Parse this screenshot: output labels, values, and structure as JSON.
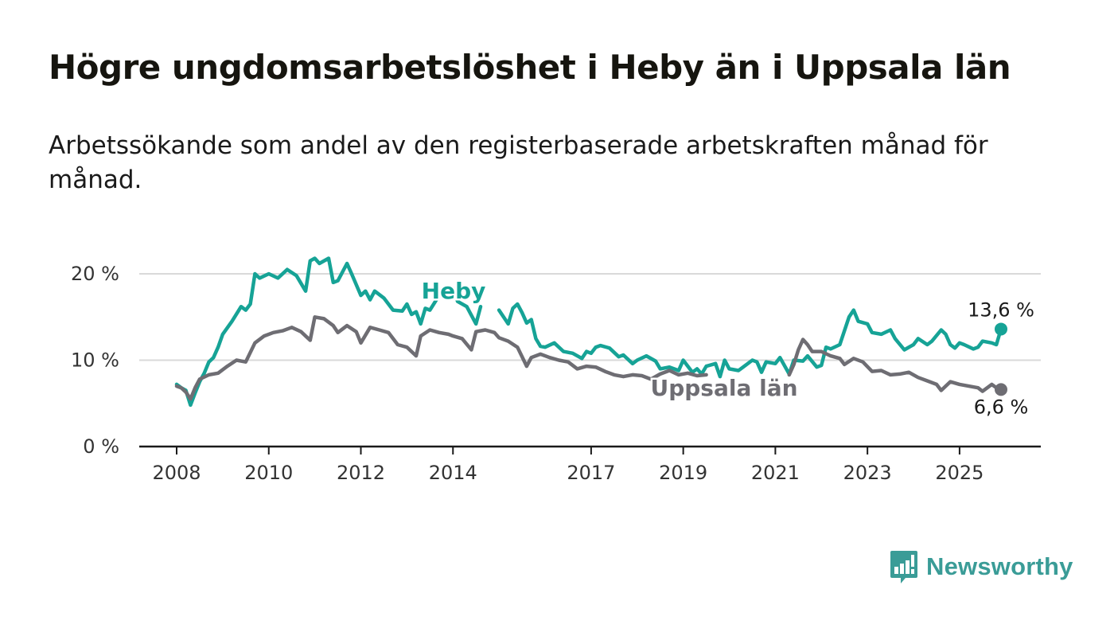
{
  "header": {
    "title": "Högre ungdomsarbetslöshet i Heby än i Uppsala län",
    "subtitle": "Arbetssökande som andel av den registerbaserade arbetskraften månad för månad."
  },
  "brand": {
    "name": "Newsworthy",
    "icon": "bar-chart-speech-bubble-icon",
    "color": "#3a9c97"
  },
  "chart_data": {
    "type": "line",
    "title": "Högre ungdomsarbetslöshet i Heby än i Uppsala län",
    "subtitle": "Arbetssökande som andel av den registerbaserade arbetskraften månad för månad.",
    "xlabel": "",
    "ylabel": "",
    "x_range": [
      2007.5,
      2025.9
    ],
    "ylim": [
      0,
      22
    ],
    "y_ticks": [
      0,
      10,
      20
    ],
    "y_tick_labels": [
      "0 %",
      "10 %",
      "20 %"
    ],
    "x_ticks": [
      2008,
      2010,
      2012,
      2014,
      2017,
      2019,
      2021,
      2023,
      2025
    ],
    "x_tick_labels": [
      "2008",
      "2010",
      "2012",
      "2014",
      "2017",
      "2019",
      "2021",
      "2023",
      "2025"
    ],
    "grid": "horizontal",
    "series": [
      {
        "name": "Heby",
        "color": "#16a396",
        "end_label": "13,6 %",
        "points": [
          [
            2008.0,
            7.2
          ],
          [
            2008.1,
            6.8
          ],
          [
            2008.2,
            6.5
          ],
          [
            2008.3,
            4.8
          ],
          [
            2008.4,
            6.2
          ],
          [
            2008.5,
            7.5
          ],
          [
            2008.6,
            8.5
          ],
          [
            2008.7,
            9.8
          ],
          [
            2008.8,
            10.3
          ],
          [
            2008.9,
            11.5
          ],
          [
            2009.0,
            13.0
          ],
          [
            2009.2,
            14.5
          ],
          [
            2009.4,
            16.2
          ],
          [
            2009.5,
            15.8
          ],
          [
            2009.6,
            16.5
          ],
          [
            2009.7,
            20.0
          ],
          [
            2009.8,
            19.5
          ],
          [
            2010.0,
            20.0
          ],
          [
            2010.2,
            19.5
          ],
          [
            2010.4,
            20.5
          ],
          [
            2010.6,
            19.8
          ],
          [
            2010.8,
            18.0
          ],
          [
            2010.9,
            21.5
          ],
          [
            2011.0,
            21.8
          ],
          [
            2011.1,
            21.2
          ],
          [
            2011.3,
            21.8
          ],
          [
            2011.4,
            19.0
          ],
          [
            2011.5,
            19.2
          ],
          [
            2011.7,
            21.2
          ],
          [
            2011.8,
            20.0
          ],
          [
            2012.0,
            17.5
          ],
          [
            2012.1,
            18.0
          ],
          [
            2012.2,
            17.0
          ],
          [
            2012.3,
            18.0
          ],
          [
            2012.5,
            17.2
          ],
          [
            2012.7,
            15.8
          ],
          [
            2012.9,
            15.7
          ],
          [
            2013.0,
            16.5
          ],
          [
            2013.1,
            15.3
          ],
          [
            2013.2,
            15.6
          ],
          [
            2013.3,
            14.2
          ],
          [
            2013.4,
            16.0
          ],
          [
            2013.5,
            15.8
          ],
          [
            2013.7,
            17.5
          ],
          [
            2013.9,
            17.8
          ],
          [
            2014.0,
            18.3
          ],
          [
            2014.1,
            16.8
          ],
          [
            2014.3,
            16.2
          ],
          [
            2014.5,
            14.2
          ],
          [
            2014.6,
            16.2
          ],
          [
            2014.8,
            null
          ],
          [
            2015.0,
            15.8
          ],
          [
            2015.1,
            15.0
          ],
          [
            2015.2,
            14.2
          ],
          [
            2015.3,
            16.0
          ],
          [
            2015.4,
            16.5
          ],
          [
            2015.5,
            15.5
          ],
          [
            2015.6,
            14.3
          ],
          [
            2015.7,
            14.7
          ],
          [
            2015.8,
            12.5
          ],
          [
            2015.9,
            11.6
          ],
          [
            2016.0,
            11.5
          ],
          [
            2016.2,
            12.0
          ],
          [
            2016.4,
            11.0
          ],
          [
            2016.6,
            10.8
          ],
          [
            2016.8,
            10.2
          ],
          [
            2016.9,
            11.0
          ],
          [
            2017.0,
            10.8
          ],
          [
            2017.1,
            11.5
          ],
          [
            2017.2,
            11.7
          ],
          [
            2017.4,
            11.4
          ],
          [
            2017.6,
            10.4
          ],
          [
            2017.7,
            10.6
          ],
          [
            2017.9,
            9.6
          ],
          [
            2018.0,
            10.0
          ],
          [
            2018.2,
            10.5
          ],
          [
            2018.4,
            9.9
          ],
          [
            2018.5,
            9.0
          ],
          [
            2018.7,
            9.2
          ],
          [
            2018.9,
            8.8
          ],
          [
            2019.0,
            10.0
          ],
          [
            2019.2,
            8.6
          ],
          [
            2019.3,
            9.0
          ],
          [
            2019.4,
            8.4
          ],
          [
            2019.5,
            9.3
          ],
          [
            2019.7,
            9.6
          ],
          [
            2019.8,
            8.1
          ],
          [
            2019.9,
            10.0
          ],
          [
            2020.0,
            9.0
          ],
          [
            2020.2,
            8.8
          ],
          [
            2020.3,
            9.2
          ],
          [
            2020.5,
            10.0
          ],
          [
            2020.6,
            9.8
          ],
          [
            2020.7,
            8.6
          ],
          [
            2020.8,
            9.8
          ],
          [
            2021.0,
            9.6
          ],
          [
            2021.1,
            10.3
          ],
          [
            2021.3,
            8.4
          ],
          [
            2021.4,
            10.0
          ],
          [
            2021.6,
            9.9
          ],
          [
            2021.7,
            10.5
          ],
          [
            2021.9,
            9.2
          ],
          [
            2022.0,
            9.4
          ],
          [
            2022.1,
            11.5
          ],
          [
            2022.2,
            11.3
          ],
          [
            2022.4,
            11.8
          ],
          [
            2022.6,
            15.0
          ],
          [
            2022.7,
            15.8
          ],
          [
            2022.8,
            14.5
          ],
          [
            2023.0,
            14.2
          ],
          [
            2023.1,
            13.2
          ],
          [
            2023.3,
            13.0
          ],
          [
            2023.5,
            13.5
          ],
          [
            2023.6,
            12.5
          ],
          [
            2023.8,
            11.2
          ],
          [
            2024.0,
            11.8
          ],
          [
            2024.1,
            12.5
          ],
          [
            2024.3,
            11.8
          ],
          [
            2024.4,
            12.2
          ],
          [
            2024.6,
            13.5
          ],
          [
            2024.7,
            13.0
          ],
          [
            2024.8,
            11.8
          ],
          [
            2024.9,
            11.4
          ],
          [
            2025.0,
            12.0
          ],
          [
            2025.1,
            11.8
          ],
          [
            2025.3,
            11.3
          ],
          [
            2025.4,
            11.5
          ],
          [
            2025.5,
            12.2
          ],
          [
            2025.7,
            12.0
          ],
          [
            2025.8,
            11.8
          ],
          [
            2025.9,
            13.6
          ]
        ]
      },
      {
        "name": "Uppsala län",
        "color": "#6e6d73",
        "end_label": "6,6 %",
        "points": [
          [
            2008.0,
            7.0
          ],
          [
            2008.1,
            6.8
          ],
          [
            2008.2,
            6.3
          ],
          [
            2008.3,
            5.5
          ],
          [
            2008.4,
            6.8
          ],
          [
            2008.5,
            7.8
          ],
          [
            2008.7,
            8.3
          ],
          [
            2008.9,
            8.5
          ],
          [
            2009.1,
            9.3
          ],
          [
            2009.3,
            10.0
          ],
          [
            2009.5,
            9.8
          ],
          [
            2009.7,
            12.0
          ],
          [
            2009.9,
            12.8
          ],
          [
            2010.1,
            13.2
          ],
          [
            2010.3,
            13.4
          ],
          [
            2010.5,
            13.8
          ],
          [
            2010.7,
            13.3
          ],
          [
            2010.9,
            12.3
          ],
          [
            2011.0,
            15.0
          ],
          [
            2011.2,
            14.8
          ],
          [
            2011.4,
            14.0
          ],
          [
            2011.5,
            13.2
          ],
          [
            2011.7,
            14.0
          ],
          [
            2011.9,
            13.3
          ],
          [
            2012.0,
            12.0
          ],
          [
            2012.2,
            13.8
          ],
          [
            2012.4,
            13.5
          ],
          [
            2012.6,
            13.2
          ],
          [
            2012.8,
            11.8
          ],
          [
            2013.0,
            11.5
          ],
          [
            2013.2,
            10.5
          ],
          [
            2013.3,
            12.8
          ],
          [
            2013.5,
            13.5
          ],
          [
            2013.7,
            13.2
          ],
          [
            2013.9,
            13.0
          ],
          [
            2014.0,
            12.8
          ],
          [
            2014.2,
            12.5
          ],
          [
            2014.4,
            11.2
          ],
          [
            2014.5,
            13.3
          ],
          [
            2014.7,
            13.5
          ],
          [
            2014.9,
            13.2
          ],
          [
            2015.0,
            12.6
          ],
          [
            2015.2,
            12.2
          ],
          [
            2015.4,
            11.5
          ],
          [
            2015.6,
            9.3
          ],
          [
            2015.7,
            10.3
          ],
          [
            2015.9,
            10.7
          ],
          [
            2016.1,
            10.3
          ],
          [
            2016.3,
            10.0
          ],
          [
            2016.5,
            9.8
          ],
          [
            2016.7,
            9.0
          ],
          [
            2016.9,
            9.3
          ],
          [
            2017.1,
            9.2
          ],
          [
            2017.3,
            8.7
          ],
          [
            2017.5,
            8.3
          ],
          [
            2017.7,
            8.1
          ],
          [
            2017.9,
            8.3
          ],
          [
            2018.1,
            8.2
          ],
          [
            2018.3,
            7.8
          ],
          [
            2018.5,
            8.4
          ],
          [
            2018.7,
            8.8
          ],
          [
            2018.9,
            8.3
          ],
          [
            2019.1,
            8.5
          ],
          [
            2019.3,
            8.2
          ],
          [
            2019.5,
            8.3
          ],
          [
            2019.7,
            null
          ],
          [
            2021.3,
            8.3
          ],
          [
            2021.4,
            9.5
          ],
          [
            2021.5,
            11.2
          ],
          [
            2021.6,
            12.4
          ],
          [
            2021.7,
            11.8
          ],
          [
            2021.8,
            11.0
          ],
          [
            2022.0,
            11.0
          ],
          [
            2022.2,
            10.5
          ],
          [
            2022.4,
            10.2
          ],
          [
            2022.5,
            9.5
          ],
          [
            2022.7,
            10.2
          ],
          [
            2022.9,
            9.8
          ],
          [
            2023.1,
            8.7
          ],
          [
            2023.3,
            8.8
          ],
          [
            2023.5,
            8.3
          ],
          [
            2023.7,
            8.4
          ],
          [
            2023.9,
            8.6
          ],
          [
            2024.1,
            8.0
          ],
          [
            2024.3,
            7.6
          ],
          [
            2024.5,
            7.2
          ],
          [
            2024.6,
            6.5
          ],
          [
            2024.8,
            7.5
          ],
          [
            2025.0,
            7.2
          ],
          [
            2025.2,
            7.0
          ],
          [
            2025.4,
            6.8
          ],
          [
            2025.5,
            6.4
          ],
          [
            2025.7,
            7.2
          ],
          [
            2025.8,
            6.8
          ],
          [
            2025.9,
            6.6
          ]
        ]
      }
    ]
  }
}
